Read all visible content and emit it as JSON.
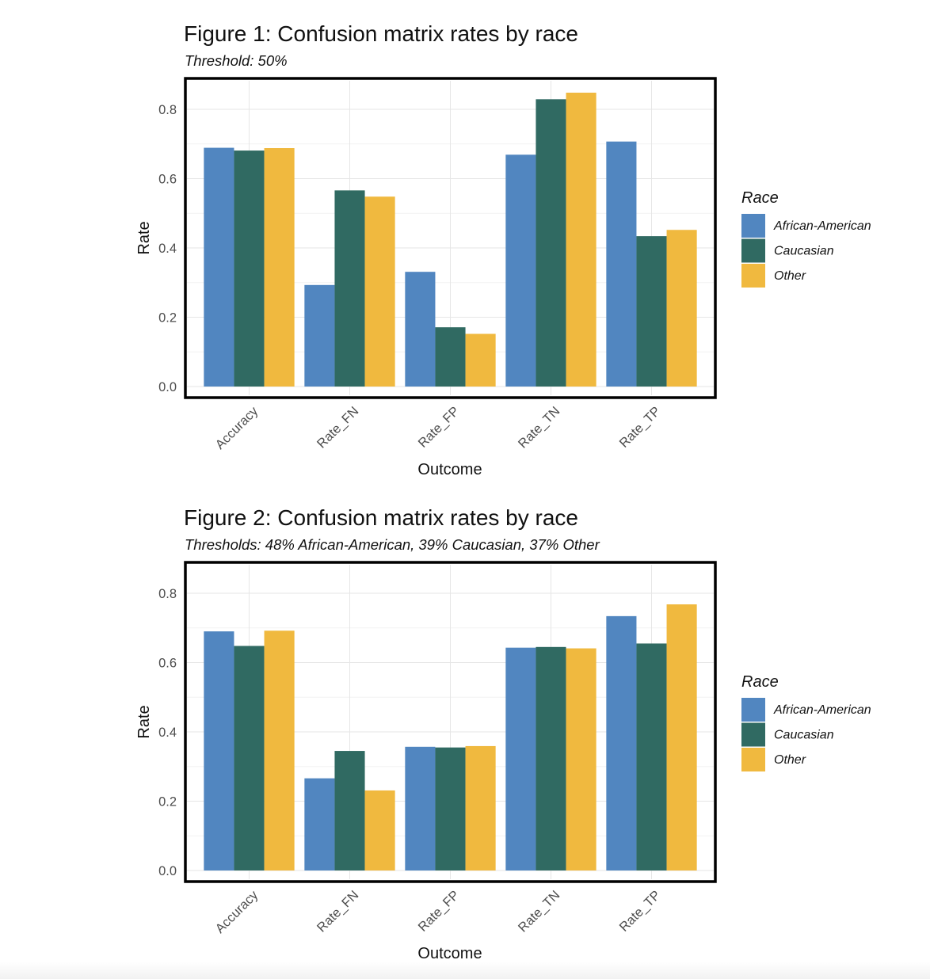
{
  "legend_title": "Race",
  "colors": {
    "African-American": "#5186C0",
    "Caucasian": "#306A62",
    "Other": "#F0B93F"
  },
  "chart_data": [
    {
      "type": "bar",
      "title": "Figure 1: Confusion matrix rates by race",
      "subtitle": "Threshold: 50%",
      "xlabel": "Outcome",
      "ylabel": "Rate",
      "categories": [
        "Accuracy",
        "Rate_FN",
        "Rate_FP",
        "Rate_TN",
        "Rate_TP"
      ],
      "ylim": [
        0,
        0.8
      ],
      "yticks": [
        0.0,
        0.2,
        0.4,
        0.6,
        0.8
      ],
      "ytick_labels": [
        "0.0",
        "0.2",
        "0.4",
        "0.6",
        "0.8"
      ],
      "legend_position": "right",
      "grid": true,
      "series": [
        {
          "name": "African-American",
          "values": [
            0.689,
            0.293,
            0.331,
            0.669,
            0.707
          ]
        },
        {
          "name": "Caucasian",
          "values": [
            0.681,
            0.566,
            0.171,
            0.829,
            0.434
          ]
        },
        {
          "name": "Other",
          "values": [
            0.688,
            0.548,
            0.152,
            0.848,
            0.452
          ]
        }
      ]
    },
    {
      "type": "bar",
      "title": "Figure 2: Confusion matrix rates by race",
      "subtitle": "Thresholds: 48% African-American, 39% Caucasian, 37% Other",
      "xlabel": "Outcome",
      "ylabel": "Rate",
      "categories": [
        "Accuracy",
        "Rate_FN",
        "Rate_FP",
        "Rate_TN",
        "Rate_TP"
      ],
      "ylim": [
        0,
        0.8
      ],
      "yticks": [
        0.0,
        0.2,
        0.4,
        0.6,
        0.8
      ],
      "ytick_labels": [
        "0.0",
        "0.2",
        "0.4",
        "0.6",
        "0.8"
      ],
      "legend_position": "right",
      "grid": true,
      "series": [
        {
          "name": "African-American",
          "values": [
            0.69,
            0.266,
            0.357,
            0.643,
            0.734
          ]
        },
        {
          "name": "Caucasian",
          "values": [
            0.648,
            0.345,
            0.355,
            0.645,
            0.655
          ]
        },
        {
          "name": "Other",
          "values": [
            0.692,
            0.231,
            0.359,
            0.641,
            0.768
          ]
        }
      ]
    }
  ]
}
